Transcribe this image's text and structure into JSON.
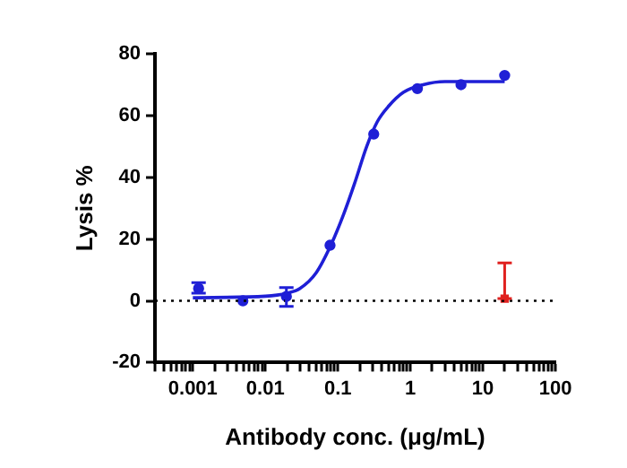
{
  "chart_data": {
    "type": "scatter",
    "xlabel": "Antibody conc. (μg/mL)",
    "ylabel": "Lysis %",
    "log": "x",
    "grid": false,
    "legend": false,
    "xlim": [
      0.0003,
      100
    ],
    "xticks": [
      {
        "value": 0.0003,
        "label": null
      },
      {
        "value": 0.0004,
        "label": null
      },
      {
        "value": 0.0005,
        "label": null
      },
      {
        "value": 0.0006,
        "label": null
      },
      {
        "value": 0.0007,
        "label": null
      },
      {
        "value": 0.0008,
        "label": null
      },
      {
        "value": 0.0009,
        "label": null
      },
      0.001,
      {
        "value": 0.002,
        "label": null
      },
      {
        "value": 0.003,
        "label": null
      },
      {
        "value": 0.004,
        "label": null
      },
      {
        "value": 0.005,
        "label": null
      },
      {
        "value": 0.006,
        "label": null
      },
      {
        "value": 0.007,
        "label": null
      },
      {
        "value": 0.008,
        "label": null
      },
      {
        "value": 0.009,
        "label": null
      },
      0.01,
      {
        "value": 0.02,
        "label": null
      },
      {
        "value": 0.03,
        "label": null
      },
      {
        "value": 0.04,
        "label": null
      },
      {
        "value": 0.05,
        "label": null
      },
      {
        "value": 0.06,
        "label": null
      },
      {
        "value": 0.07,
        "label": null
      },
      {
        "value": 0.08,
        "label": null
      },
      {
        "value": 0.09,
        "label": null
      },
      0.1,
      {
        "value": 0.2,
        "label": null
      },
      {
        "value": 0.3,
        "label": null
      },
      {
        "value": 0.4,
        "label": null
      },
      {
        "value": 0.5,
        "label": null
      },
      {
        "value": 0.6,
        "label": null
      },
      {
        "value": 0.7,
        "label": null
      },
      {
        "value": 0.8,
        "label": null
      },
      {
        "value": 0.9,
        "label": null
      },
      1,
      {
        "value": 2,
        "label": null
      },
      {
        "value": 3,
        "label": null
      },
      {
        "value": 4,
        "label": null
      },
      {
        "value": 5,
        "label": null
      },
      {
        "value": 6,
        "label": null
      },
      {
        "value": 7,
        "label": null
      },
      {
        "value": 8,
        "label": null
      },
      {
        "value": 9,
        "label": null
      },
      10,
      {
        "value": 20,
        "label": null
      },
      {
        "value": 30,
        "label": null
      },
      {
        "value": 40,
        "label": null
      },
      {
        "value": 50,
        "label": null
      },
      {
        "value": 60,
        "label": null
      },
      {
        "value": 70,
        "label": null
      },
      {
        "value": 80,
        "label": null
      },
      {
        "value": 90,
        "label": null
      },
      100
    ],
    "ylim": [
      -20,
      80
    ],
    "yticks": [
      -20,
      0,
      20,
      40,
      60,
      80
    ],
    "ref_lines": [
      {
        "axis": "y",
        "value": 0,
        "line_style": "dotted",
        "color": "#000000"
      }
    ],
    "series": [
      {
        "type": "line",
        "color": "#1f1fd6",
        "marker": "none",
        "line_style": "solid",
        "x": [
          0.001,
          0.01,
          0.02,
          0.03,
          0.05,
          0.08,
          0.12,
          0.17,
          0.25,
          0.35,
          0.5,
          0.8,
          1.5,
          3,
          20
        ],
        "values": [
          1,
          1.5,
          2.5,
          4,
          9,
          18,
          28,
          38,
          50,
          58,
          63,
          67.5,
          70,
          71,
          71
        ]
      },
      {
        "color": "#1f1fd6",
        "marker": "circle",
        "x": [
          0.0012,
          0.0049,
          0.0195,
          0.078,
          0.3125,
          1.25,
          5,
          20
        ],
        "values": [
          4,
          0,
          1.4,
          18,
          54,
          68.7,
          70,
          73
        ],
        "errors": [
          [
            2.5,
            5.9
          ],
          null,
          [
            -1.8,
            4.3
          ],
          null,
          null,
          null,
          null,
          null
        ]
      },
      {
        "color": "#e0211f",
        "marker": "square",
        "x": [
          20
        ],
        "values": [
          0.7
        ],
        "errors": [
          [
            0.7,
            12.3
          ]
        ]
      }
    ]
  }
}
